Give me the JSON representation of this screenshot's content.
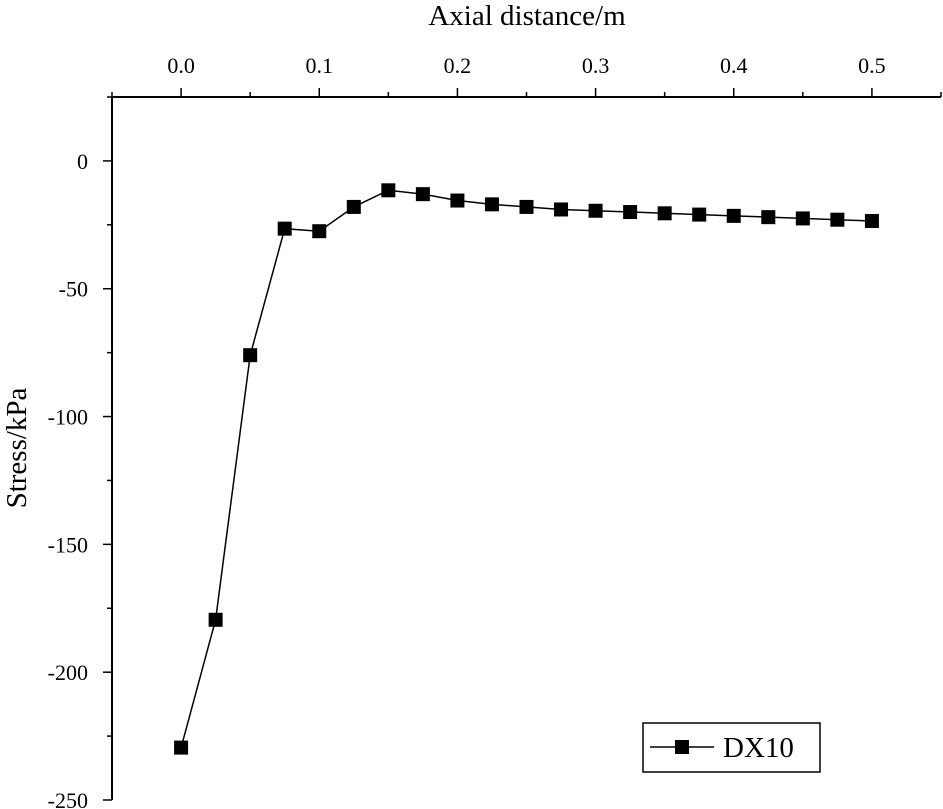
{
  "chart_data": {
    "type": "line",
    "title": "",
    "xlabel": "Axial distance/m",
    "ylabel": "Stress/kPa",
    "x_axis_position": "top",
    "xlim": [
      -0.05,
      0.55
    ],
    "ylim": [
      -250,
      25
    ],
    "xticks": [
      0.0,
      0.1,
      0.2,
      0.3,
      0.4,
      0.5
    ],
    "xtick_labels": [
      "0.0",
      "0.1",
      "0.2",
      "0.3",
      "0.4",
      "0.5"
    ],
    "yticks": [
      0,
      -50,
      -100,
      -150,
      -200,
      -250
    ],
    "ytick_labels": [
      "0",
      "-50",
      "-100",
      "-150",
      "-200",
      "-250"
    ],
    "grid": false,
    "legend_position": "bottom-right",
    "marker": "square",
    "color": "#000000",
    "series": [
      {
        "name": "DX10",
        "x": [
          0.0,
          0.025,
          0.05,
          0.075,
          0.1,
          0.125,
          0.15,
          0.175,
          0.2,
          0.225,
          0.25,
          0.275,
          0.3,
          0.325,
          0.35,
          0.375,
          0.4,
          0.425,
          0.45,
          0.475,
          0.5
        ],
        "values": [
          -229.5,
          -179.5,
          -76,
          -26.5,
          -27.5,
          -18,
          -11.5,
          -13,
          -15.5,
          -17,
          -18,
          -19,
          -19.5,
          -20,
          -20.5,
          -21,
          -21.5,
          -22,
          -22.5,
          -23,
          -23.5
        ]
      }
    ]
  }
}
